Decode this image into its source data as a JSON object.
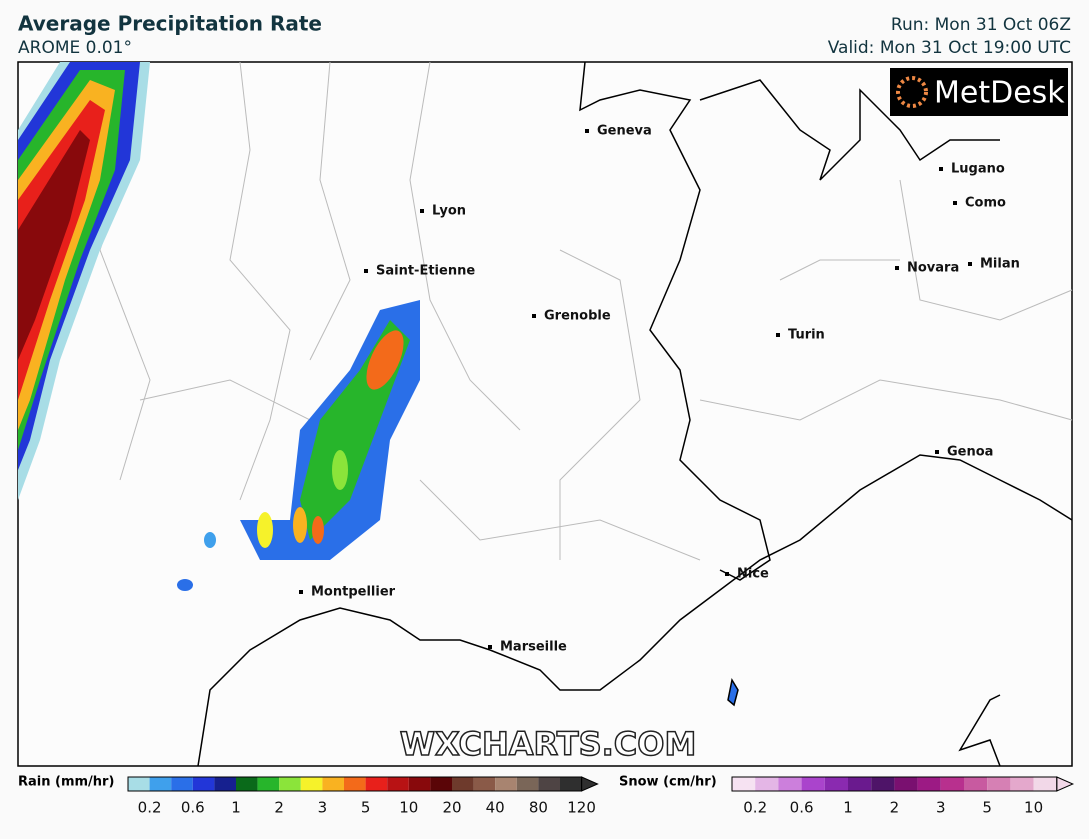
{
  "header": {
    "title": "Average Precipitation Rate",
    "subtitle": "AROME 0.01°",
    "run": "Run: Mon 31 Oct 06Z",
    "valid": "Valid: Mon 31 Oct 19:00 UTC"
  },
  "logo": "MetDesk",
  "watermark": "WXCHARTS.COM",
  "cities": [
    "Geneva",
    "Lyon",
    "Saint-Etienne",
    "Grenoble",
    "Lugano",
    "Como",
    "Novara",
    "Milan",
    "Turin",
    "Genoa",
    "Nice",
    "Montpellier",
    "Marseille"
  ],
  "legend": {
    "rain": {
      "label": "Rain (mm/hr)",
      "ticks": [
        0.2,
        0.6,
        1,
        2,
        3,
        5,
        10,
        20,
        40,
        80,
        120
      ],
      "colors": [
        "#a8dde6",
        "#3fa0ec",
        "#2a6fe8",
        "#2236d8",
        "#16208f",
        "#0a6a1a",
        "#27b52b",
        "#8be43a",
        "#f6f22a",
        "#f9b221",
        "#f36a1a",
        "#e8201b",
        "#b81214",
        "#88090c",
        "#5a0507",
        "#6e3a2c",
        "#8a5a48",
        "#a88470",
        "#7a6658",
        "#4e4444",
        "#2f2f2f"
      ]
    },
    "snow": {
      "label": "Snow (cm/hr)",
      "ticks": [
        0.2,
        0.6,
        1,
        2,
        3,
        5,
        10
      ],
      "colors": [
        "#f6e2f2",
        "#e4b6e6",
        "#cc7fdc",
        "#aa44cc",
        "#8a2ab0",
        "#6a1a8e",
        "#4e1468",
        "#7a1070",
        "#9c1a84",
        "#b8308e",
        "#c85aa0",
        "#d680b4",
        "#e4a8cc",
        "#f2d8e8"
      ]
    }
  }
}
